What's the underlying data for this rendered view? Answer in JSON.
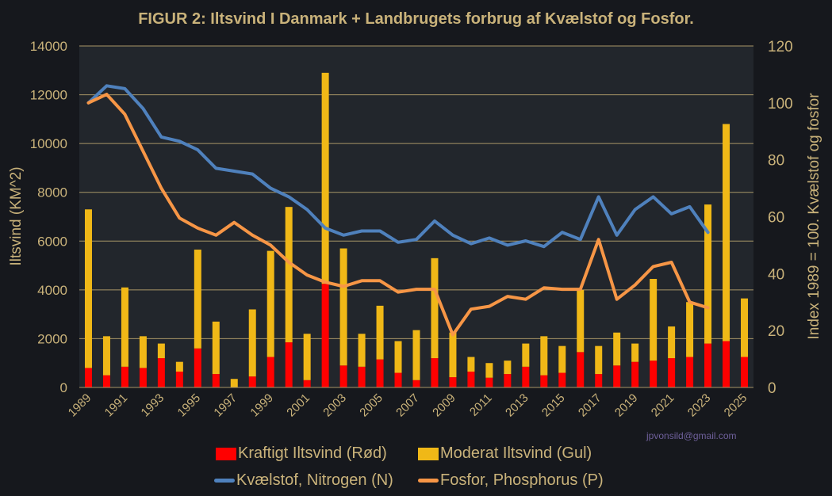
{
  "chart_data": {
    "type": "bar+line",
    "title": "FIGUR 2: Iltsvind I Danmark + Landbrugets forbrug af Kvælstof og Fosfor.",
    "ylabel": "Iltsvind (KM^2)",
    "y2label": "Index 1989 = 100. Kvælstof og fosfor",
    "ylim": [
      0,
      14000
    ],
    "y2lim": [
      0,
      120
    ],
    "yticks": [
      "0",
      "2000",
      "4000",
      "6000",
      "8000",
      "10000",
      "12000",
      "14000"
    ],
    "y2ticks": [
      "0",
      "20",
      "40",
      "60",
      "80",
      "100",
      "120"
    ],
    "grid": true,
    "legend": "bottom",
    "categories": [
      1989,
      1990,
      1991,
      1992,
      1993,
      1994,
      1995,
      1996,
      1997,
      1998,
      1999,
      2000,
      2001,
      2002,
      2003,
      2004,
      2005,
      2006,
      2007,
      2008,
      2009,
      2010,
      2011,
      2012,
      2013,
      2014,
      2015,
      2016,
      2017,
      2018,
      2019,
      2020,
      2021,
      2022,
      2023,
      2024,
      2025
    ],
    "xtick_labels": [
      "1989",
      "1991",
      "1993",
      "1995",
      "1997",
      "1999",
      "2001",
      "2003",
      "2005",
      "2007",
      "2009",
      "2011",
      "2013",
      "2015",
      "2017",
      "2019",
      "2021",
      "2023",
      "2025"
    ],
    "series": [
      {
        "name": "Kraftigt Iltsvind (Rød)",
        "kind": "stacked-bar",
        "axis": "left",
        "color": "#ff0000",
        "values": [
          800,
          500,
          850,
          800,
          1200,
          650,
          1600,
          550,
          0,
          450,
          1250,
          1850,
          300,
          4250,
          900,
          850,
          1150,
          600,
          300,
          1200,
          420,
          650,
          400,
          550,
          850,
          500,
          600,
          1450,
          550,
          900,
          1050,
          1100,
          1200,
          1250,
          1800,
          1900,
          1250
        ]
      },
      {
        "name": "Moderat Iltsvind (Gul)",
        "kind": "stacked-bar",
        "axis": "left",
        "color": "#f0b817",
        "values": [
          6500,
          1600,
          3250,
          1300,
          600,
          400,
          4050,
          2150,
          350,
          2750,
          4350,
          5550,
          1900,
          8650,
          4800,
          1350,
          2200,
          1300,
          2050,
          4100,
          1830,
          600,
          600,
          550,
          950,
          1600,
          1100,
          2550,
          1150,
          1350,
          750,
          3350,
          1300,
          2250,
          5700,
          8900,
          2400
        ]
      },
      {
        "name": "Kvælstof, Nitrogen (N)",
        "kind": "line",
        "axis": "right",
        "color": "#4f81bd",
        "values": [
          100,
          106,
          105,
          98,
          88,
          86.5,
          83.5,
          77,
          76,
          75,
          70,
          67,
          62.5,
          56,
          53.5,
          55,
          55,
          51,
          52,
          58.5,
          53.5,
          50.5,
          52.5,
          50,
          51.5,
          49.5,
          54.5,
          52,
          67,
          53.5,
          62.5,
          67,
          61,
          63.5,
          54.5,
          null,
          null
        ]
      },
      {
        "name": "Fosfor, Phosphorus (P)",
        "kind": "line",
        "axis": "right",
        "color": "#f79646",
        "values": [
          100,
          103,
          96,
          83,
          70,
          59.5,
          56,
          53.5,
          58,
          53.5,
          50,
          44,
          39.5,
          37,
          35.5,
          37.5,
          37.5,
          33.5,
          34.5,
          34.5,
          18.5,
          27.5,
          28.5,
          32,
          31,
          35,
          34.5,
          34.5,
          52,
          31,
          36,
          42.5,
          44,
          30,
          28,
          null,
          null
        ]
      }
    ]
  },
  "credit": "jpvonsild@gmail.com"
}
